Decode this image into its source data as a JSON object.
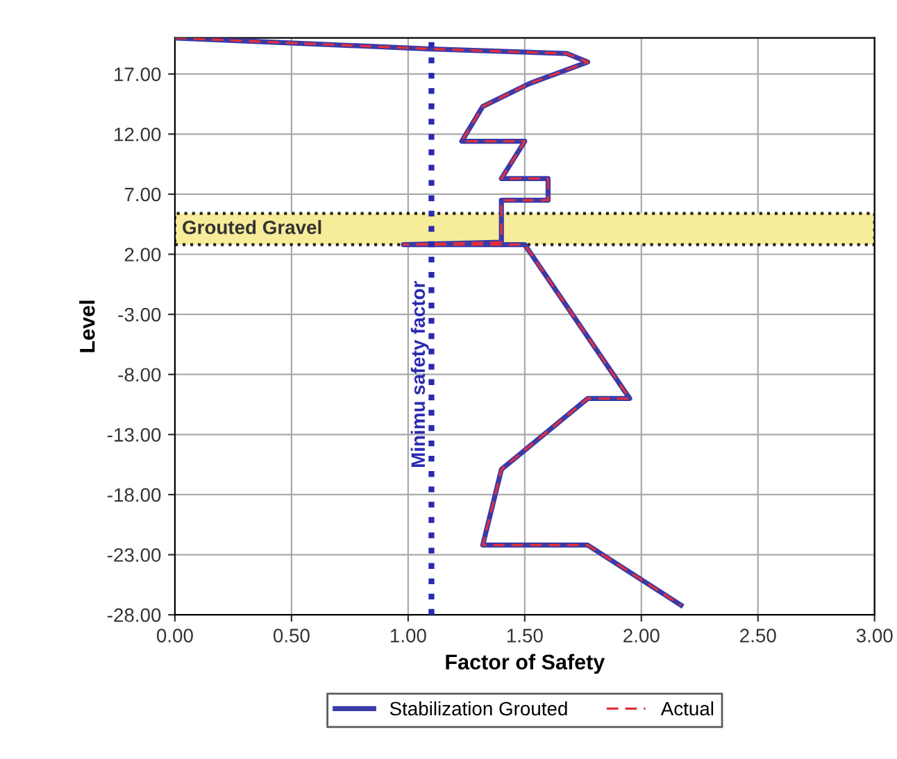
{
  "chart_data": {
    "type": "line",
    "xlabel": "Factor of Safety",
    "ylabel": "Level",
    "series": [
      {
        "name": "Stabilization Grouted",
        "color": "#3a3aa8",
        "line_style": "solid",
        "x": [
          0.0,
          1.08,
          1.68,
          1.77,
          1.52,
          1.32,
          1.23,
          1.5,
          1.4,
          1.6,
          1.6,
          1.4,
          1.4,
          1.4,
          0.98,
          1.5,
          1.95,
          1.77,
          1.4,
          1.32,
          1.77,
          2.17
        ],
        "values": [
          20.0,
          19.1,
          18.7,
          18.0,
          16.2,
          14.3,
          11.4,
          11.4,
          8.3,
          8.3,
          6.5,
          6.5,
          5.4,
          3.0,
          2.8,
          2.8,
          -10.0,
          -10.0,
          -15.9,
          -22.2,
          -22.2,
          -27.2
        ]
      },
      {
        "name": "Actual",
        "color": "#e0303c",
        "line_style": "dashed",
        "x": [
          0.0,
          1.08,
          1.68,
          1.77,
          1.52,
          1.32,
          1.23,
          1.5,
          1.4,
          1.6,
          1.6,
          1.4,
          1.4,
          1.4,
          0.98,
          1.5,
          1.95,
          1.77,
          1.4,
          1.32,
          1.77,
          2.17
        ],
        "values": [
          20.0,
          19.1,
          18.7,
          18.0,
          16.2,
          14.3,
          11.4,
          11.4,
          8.3,
          8.3,
          6.5,
          6.5,
          5.4,
          3.0,
          2.8,
          2.8,
          -10.0,
          -10.0,
          -15.9,
          -22.2,
          -22.2,
          -27.2
        ]
      }
    ],
    "xlim": [
      0,
      3
    ],
    "xticks": [
      {
        "value": 0,
        "label": "0.00"
      },
      {
        "value": 0.5,
        "label": "0.50"
      },
      {
        "value": 1,
        "label": "1.00"
      },
      {
        "value": 1.5,
        "label": "1.50"
      },
      {
        "value": 2,
        "label": "2.00"
      },
      {
        "value": 2.5,
        "label": "2.50"
      },
      {
        "value": 3,
        "label": "3.00"
      }
    ],
    "ylim": [
      -28,
      20
    ],
    "yticks": [
      {
        "value": -28,
        "label": "-28.00"
      },
      {
        "value": -23,
        "label": "-23.00"
      },
      {
        "value": -18,
        "label": "-18.00"
      },
      {
        "value": -13,
        "label": "-13.00"
      },
      {
        "value": -8,
        "label": "-8.00"
      },
      {
        "value": -3,
        "label": "-3.00"
      },
      {
        "value": 2,
        "label": "2.00"
      },
      {
        "value": 7,
        "label": "7.00"
      },
      {
        "value": 12,
        "label": "12.00"
      },
      {
        "value": 17,
        "label": "17.00"
      }
    ],
    "ref_lines": [
      {
        "axis": "x",
        "value": 1.1,
        "label": "Minimu safety factor",
        "color": "#2a2ab0",
        "line_style": "dotted"
      }
    ],
    "bands": [
      {
        "axis": "y",
        "from": 2.8,
        "to": 5.4,
        "label": "Grouted Gravel",
        "color": "#f7ec9a"
      }
    ],
    "grid": true,
    "legend": "bottom",
    "marker": "none"
  }
}
